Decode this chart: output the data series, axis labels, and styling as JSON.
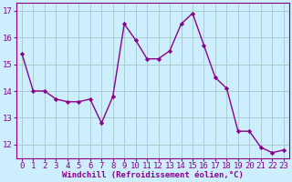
{
  "x": [
    0,
    1,
    2,
    3,
    4,
    5,
    6,
    7,
    8,
    9,
    10,
    11,
    12,
    13,
    14,
    15,
    16,
    17,
    18,
    19,
    20,
    21,
    22,
    23
  ],
  "y": [
    15.4,
    14.0,
    14.0,
    13.7,
    13.6,
    13.6,
    13.7,
    12.8,
    13.8,
    16.5,
    15.9,
    15.2,
    15.2,
    15.5,
    16.5,
    16.9,
    15.7,
    14.5,
    14.1,
    12.5,
    12.5,
    11.9,
    11.7,
    11.8
  ],
  "line_color": "#8b008b",
  "marker": "D",
  "marker_size": 2.2,
  "bg_color": "#cceeff",
  "grid_color": "#aacccc",
  "ylim": [
    11.5,
    17.3
  ],
  "yticks": [
    12,
    13,
    14,
    15,
    16,
    17
  ],
  "xlabel": "Windchill (Refroidissement éolien,°C)",
  "xlabel_fontsize": 6.5,
  "tick_fontsize": 6.5,
  "line_width": 1.0
}
